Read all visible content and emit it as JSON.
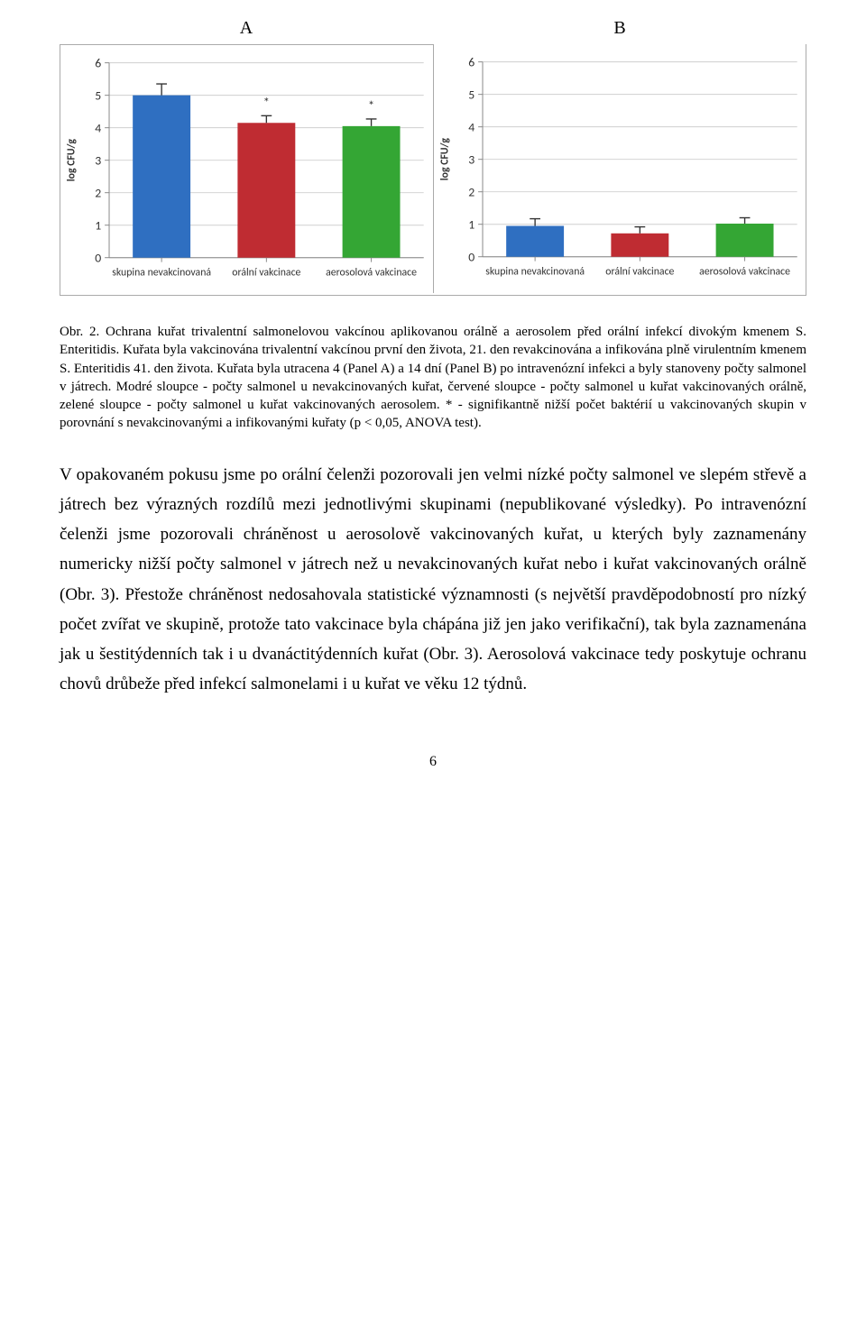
{
  "panels": {
    "A": {
      "label": "A",
      "type": "bar",
      "y_label": "log CFU/g",
      "y_label_fontsize": 12,
      "ylim": [
        0,
        6
      ],
      "ytick_step": 1,
      "categories": [
        "skupina nevakcinovaná",
        "orální vakcinace",
        "aerosolová vakcinace"
      ],
      "category_fontsize": 12,
      "values": [
        5.0,
        4.15,
        4.05
      ],
      "errors": [
        0.35,
        0.22,
        0.22
      ],
      "significance": [
        false,
        true,
        true
      ],
      "bar_colors": [
        "#2f6fc1",
        "#bf2c32",
        "#34a634"
      ],
      "bar_width": 0.55,
      "gridline_color": "#cfcfcf",
      "axis_color": "#888888",
      "background_color": "#ffffff",
      "errorbar_color": "#333333",
      "sig_marker": "*"
    },
    "B": {
      "label": "B",
      "type": "bar",
      "y_label": "log CFU/g",
      "y_label_fontsize": 12,
      "ylim": [
        0,
        6
      ],
      "ytick_step": 1,
      "categories": [
        "skupina nevakcinovaná",
        "orální vakcinace",
        "aerosolová vakcinace"
      ],
      "category_fontsize": 12,
      "values": [
        0.95,
        0.72,
        1.02
      ],
      "errors": [
        0.22,
        0.2,
        0.18
      ],
      "significance": [
        false,
        false,
        false
      ],
      "bar_colors": [
        "#2f6fc1",
        "#bf2c32",
        "#34a634"
      ],
      "bar_width": 0.55,
      "gridline_color": "#cfcfcf",
      "axis_color": "#888888",
      "background_color": "#ffffff",
      "errorbar_color": "#333333",
      "sig_marker": "*"
    }
  },
  "caption": {
    "prefix": "Obr. 2.",
    "text": " Ochrana kuřat trivalentní salmonelovou vakcínou aplikovanou orálně a aerosolem před orální infekcí divokým kmenem S. Enteritidis. Kuřata byla  vakcinována trivalentní vakcínou první den života, 21. den revakcinována a infikována plně virulentním kmenem S. Enteritidis 41. den života. Kuřata byla utracena 4 (Panel A) a 14 dní (Panel B) po intravenózní infekci a byly stanoveny počty salmonel v játrech. Modré sloupce - počty salmonel u nevakcinovaných kuřat, červené sloupce - počty salmonel u kuřat vakcinovaných orálně, zelené sloupce - počty salmonel u kuřat vakcinovaných aerosolem. *  -  signifikantně nižší počet baktérií u vakcinovaných skupin v porovnání s nevakcinovanými a infikovanými kuřaty (p < 0,05, ANOVA test)."
  },
  "body": "V opakovaném pokusu jsme po orální čelenži pozorovali jen velmi nízké počty salmonel ve slepém střevě a játrech bez výrazných rozdílů mezi jednotlivými skupinami (nepublikované výsledky). Po intravenózní čelenži jsme pozorovali chráněnost u aerosolově vakcinovaných kuřat, u kterých byly zaznamenány numericky nižší počty salmonel v játrech než u nevakcinovaných kuřat nebo i  kuřat vakcinovaných orálně (Obr. 3). Přestože chráněnost nedosahovala statistické významnosti (s největší pravděpodobností pro nízký počet zvířat ve skupině,  protože tato vakcinace byla chápána již jen jako verifikační), tak byla zaznamenána jak u šestitýdenních tak i u dvanáctitýdenních kuřat (Obr. 3). Aerosolová vakcinace tedy poskytuje ochranu chovů drůbeže před infekcí salmonelami i u kuřat ve věku 12 týdnů.",
  "page_number": "6"
}
